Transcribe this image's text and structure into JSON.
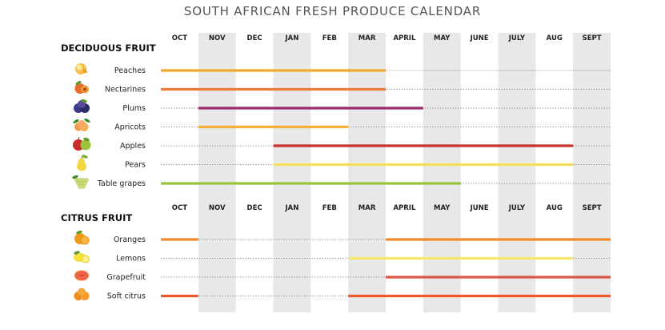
{
  "title": "SOUTH AFRICAN FRESH PRODUCE CALENDAR",
  "months": [
    "OCT",
    "NOV",
    "DEC",
    "JAN",
    "FEB",
    "MAR",
    "APRIL",
    "MAY",
    "JUNE",
    "JULY",
    "AUG",
    "SEPT"
  ],
  "shaded_months": [
    "NOV",
    "JAN",
    "MAR",
    "MAY",
    "JULY",
    "SEPT"
  ],
  "colors": {
    "shade": "#e8e8e8",
    "dotted": "#666666"
  },
  "chart_data": [
    {
      "type": "timeline",
      "title": "DECIDUOUS FRUIT",
      "categories": [
        "Peaches",
        "Nectarines",
        "Plums",
        "Apricots",
        "Apples",
        "Pears",
        "Table grapes"
      ],
      "series": [
        {
          "name": "Peaches",
          "icon": "peach-icon",
          "color": "#f0a830",
          "start": "OCT",
          "end": "MAR"
        },
        {
          "name": "Nectarines",
          "icon": "nectarine-icon",
          "color": "#ee7a35",
          "start": "OCT",
          "end": "MAR"
        },
        {
          "name": "Plums",
          "icon": "plum-icon",
          "color": "#9b2c6e",
          "start": "NOV",
          "end": "APRIL"
        },
        {
          "name": "Apricots",
          "icon": "apricot-icon",
          "color": "#f3b13a",
          "start": "NOV",
          "end": "FEB"
        },
        {
          "name": "Apples",
          "icon": "apple-icon",
          "color": "#c9302c",
          "start": "JAN",
          "end": "AUG"
        },
        {
          "name": "Pears",
          "icon": "pear-icon",
          "color": "#f4e05c",
          "start": "JAN",
          "end": "AUG"
        },
        {
          "name": "Table grapes",
          "icon": "grapes-icon",
          "color": "#9ac53a",
          "start": "OCT",
          "end": "MAY"
        }
      ]
    },
    {
      "type": "timeline",
      "title": "CITRUS FRUIT",
      "categories": [
        "Oranges",
        "Lemons",
        "Grapefruit",
        "Soft citrus"
      ],
      "series": [
        {
          "name": "Oranges",
          "icon": "orange-icon",
          "color": "#f08a2c",
          "segments": [
            [
              "OCT",
              "OCT"
            ],
            [
              "APRIL",
              "SEPT"
            ]
          ]
        },
        {
          "name": "Lemons",
          "icon": "lemon-icon",
          "color": "#f6e86a",
          "segments": [
            [
              "MAR",
              "AUG"
            ]
          ]
        },
        {
          "name": "Grapefruit",
          "icon": "grapefruit-icon",
          "color": "#d9584a",
          "segments": [
            [
              "APRIL",
              "SEPT"
            ]
          ]
        },
        {
          "name": "Soft citrus",
          "icon": "soft-citrus-icon",
          "color": "#ef5a2a",
          "segments": [
            [
              "OCT",
              "OCT"
            ],
            [
              "MAR",
              "SEPT"
            ]
          ]
        }
      ]
    }
  ]
}
